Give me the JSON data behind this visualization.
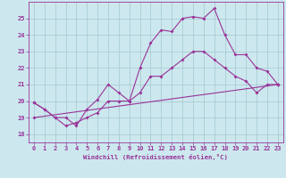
{
  "xlabel": "Windchill (Refroidissement éolien,°C)",
  "bg_color": "#cce8ee",
  "grid_color": "#aaccd4",
  "line_color": "#993399",
  "ylim": [
    17.5,
    26.0
  ],
  "xlim": [
    -0.5,
    23.5
  ],
  "yticks": [
    18,
    19,
    20,
    21,
    22,
    23,
    24,
    25
  ],
  "xticks": [
    0,
    1,
    2,
    3,
    4,
    5,
    6,
    7,
    8,
    9,
    10,
    11,
    12,
    13,
    14,
    15,
    16,
    17,
    18,
    19,
    20,
    21,
    22,
    23
  ],
  "line1_x": [
    0,
    1,
    2,
    3,
    4,
    5,
    6,
    7,
    8,
    9,
    10,
    11,
    12,
    13,
    14,
    15,
    16,
    17,
    18,
    19,
    20,
    21,
    22,
    23
  ],
  "line1_y": [
    19.9,
    19.5,
    19.0,
    18.5,
    18.7,
    19.0,
    19.3,
    20.0,
    20.0,
    20.0,
    20.5,
    21.5,
    21.5,
    22.0,
    22.5,
    23.0,
    23.0,
    22.5,
    22.0,
    21.5,
    21.2,
    20.5,
    21.0,
    21.0
  ],
  "line2_x": [
    0,
    1,
    2,
    3,
    4,
    5,
    6,
    7,
    8,
    9,
    10,
    11,
    12,
    13,
    14,
    15,
    16,
    17,
    18,
    19,
    20,
    21,
    22,
    23
  ],
  "line2_y": [
    19.9,
    19.5,
    19.0,
    19.0,
    18.5,
    19.5,
    20.1,
    21.0,
    20.5,
    20.0,
    22.0,
    23.5,
    24.3,
    24.2,
    25.0,
    25.1,
    25.0,
    25.6,
    24.0,
    22.8,
    22.8,
    22.0,
    21.8,
    21.0
  ],
  "line3_x": [
    0,
    23
  ],
  "line3_y": [
    19.0,
    21.0
  ],
  "xlabel_fontsize": 5.2,
  "tick_fontsize": 5.0
}
